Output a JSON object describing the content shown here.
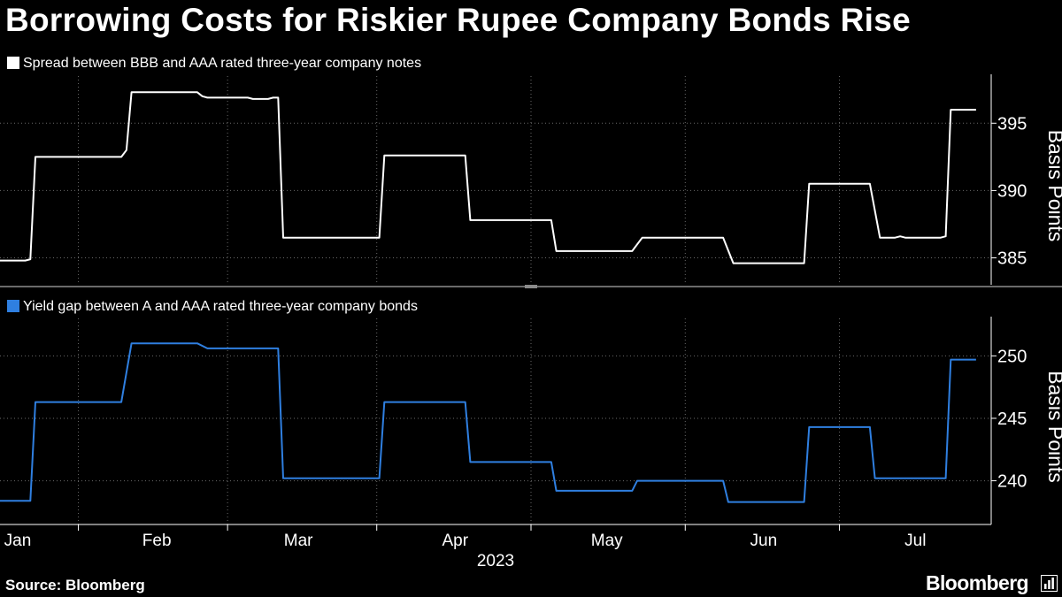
{
  "title": "Borrowing Costs for Riskier Rupee Company Bonds Rise",
  "source": "Source: Bloomberg",
  "brand": "Bloomberg",
  "colors": {
    "background": "#000000",
    "series1": "#ffffff",
    "series2": "#2f7fe0",
    "grid": "#6a6a6a"
  },
  "chart_data": [
    {
      "type": "line",
      "title": "Spread between BBB and AAA rated three-year company notes",
      "xlabel": "2023",
      "ylabel": "Basis Points",
      "ylim": [
        383,
        398.5
      ],
      "yticks": [
        385,
        390,
        395
      ],
      "xlim": [
        "2023-01-01",
        "2023-07-16"
      ],
      "xticks": [
        {
          "label": "Jan",
          "date": "2023-01-01"
        },
        {
          "label": "Feb",
          "date": "2023-02-01"
        },
        {
          "label": "Mar",
          "date": "2023-03-01"
        },
        {
          "label": "Apr",
          "date": "2023-04-01"
        },
        {
          "label": "May",
          "date": "2023-05-01"
        },
        {
          "label": "Jun",
          "date": "2023-06-01"
        },
        {
          "label": "Jul",
          "date": "2023-07-01"
        }
      ],
      "series": [
        {
          "name": "Spread between BBB and AAA rated three-year company notes",
          "color": "#ffffff",
          "points": [
            [
              "2023-01-01",
              384.8
            ],
            [
              "2023-01-06",
              384.8
            ],
            [
              "2023-01-07",
              384.9
            ],
            [
              "2023-01-08",
              392.5
            ],
            [
              "2023-01-25",
              392.5
            ],
            [
              "2023-01-26",
              393.0
            ],
            [
              "2023-01-27",
              397.3
            ],
            [
              "2023-02-09",
              397.3
            ],
            [
              "2023-02-10",
              397.0
            ],
            [
              "2023-02-11",
              396.9
            ],
            [
              "2023-02-19",
              396.9
            ],
            [
              "2023-02-20",
              396.8
            ],
            [
              "2023-02-23",
              396.8
            ],
            [
              "2023-02-24",
              396.9
            ],
            [
              "2023-02-25",
              396.9
            ],
            [
              "2023-02-26",
              386.5
            ],
            [
              "2023-03-17",
              386.5
            ],
            [
              "2023-03-18",
              392.6
            ],
            [
              "2023-04-03",
              392.6
            ],
            [
              "2023-04-04",
              387.8
            ],
            [
              "2023-04-20",
              387.8
            ],
            [
              "2023-04-21",
              385.5
            ],
            [
              "2023-05-06",
              385.5
            ],
            [
              "2023-05-08",
              386.5
            ],
            [
              "2023-05-24",
              386.5
            ],
            [
              "2023-05-26",
              384.6
            ],
            [
              "2023-06-09",
              384.6
            ],
            [
              "2023-06-10",
              390.5
            ],
            [
              "2023-06-22",
              390.5
            ],
            [
              "2023-06-24",
              386.5
            ],
            [
              "2023-06-27",
              386.5
            ],
            [
              "2023-06-28",
              386.6
            ],
            [
              "2023-06-29",
              386.5
            ],
            [
              "2023-07-06",
              386.5
            ],
            [
              "2023-07-07",
              386.6
            ],
            [
              "2023-07-08",
              396.0
            ],
            [
              "2023-07-13",
              396.0
            ]
          ]
        }
      ]
    },
    {
      "type": "line",
      "title": "Yield gap between A and AAA rated three-year company bonds",
      "xlabel": "2023",
      "ylabel": "Basis Points",
      "ylim": [
        236.5,
        253
      ],
      "yticks": [
        240,
        245,
        250
      ],
      "xlim": [
        "2023-01-01",
        "2023-07-16"
      ],
      "xticks": [
        {
          "label": "Jan",
          "date": "2023-01-01"
        },
        {
          "label": "Feb",
          "date": "2023-02-01"
        },
        {
          "label": "Mar",
          "date": "2023-03-01"
        },
        {
          "label": "Apr",
          "date": "2023-04-01"
        },
        {
          "label": "May",
          "date": "2023-05-01"
        },
        {
          "label": "Jun",
          "date": "2023-06-01"
        },
        {
          "label": "Jul",
          "date": "2023-07-01"
        }
      ],
      "series": [
        {
          "name": "Yield gap between A and AAA rated three-year company bonds",
          "color": "#2f7fe0",
          "points": [
            [
              "2023-01-01",
              238.4
            ],
            [
              "2023-01-07",
              238.4
            ],
            [
              "2023-01-08",
              246.3
            ],
            [
              "2023-01-25",
              246.3
            ],
            [
              "2023-01-27",
              251.0
            ],
            [
              "2023-02-09",
              251.0
            ],
            [
              "2023-02-11",
              250.6
            ],
            [
              "2023-02-25",
              250.6
            ],
            [
              "2023-02-26",
              240.2
            ],
            [
              "2023-03-17",
              240.2
            ],
            [
              "2023-03-18",
              246.3
            ],
            [
              "2023-04-03",
              246.3
            ],
            [
              "2023-04-04",
              241.5
            ],
            [
              "2023-04-20",
              241.5
            ],
            [
              "2023-04-21",
              239.2
            ],
            [
              "2023-05-06",
              239.2
            ],
            [
              "2023-05-07",
              240.0
            ],
            [
              "2023-05-24",
              240.0
            ],
            [
              "2023-05-25",
              238.3
            ],
            [
              "2023-06-09",
              238.3
            ],
            [
              "2023-06-10",
              244.3
            ],
            [
              "2023-06-22",
              244.3
            ],
            [
              "2023-06-23",
              240.2
            ],
            [
              "2023-07-07",
              240.2
            ],
            [
              "2023-07-08",
              249.7
            ],
            [
              "2023-07-13",
              249.7
            ]
          ]
        }
      ]
    }
  ]
}
